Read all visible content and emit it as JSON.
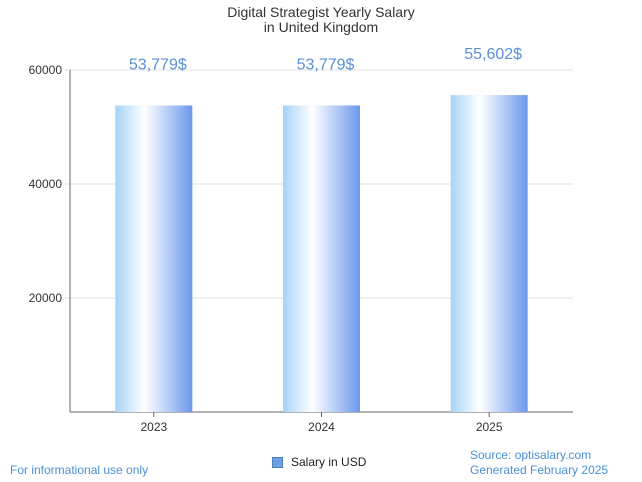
{
  "chart_data": {
    "type": "bar",
    "title_lines": [
      "Digital Strategist Yearly Salary",
      "in United Kingdom"
    ],
    "categories": [
      "2023",
      "2024",
      "2025"
    ],
    "series": [
      {
        "name": "Salary in USD",
        "values": [
          53779,
          53779,
          55602
        ]
      }
    ],
    "data_labels": [
      "53,779$",
      "53,779$",
      "55,602$"
    ],
    "y_ticks": [
      20000,
      40000,
      60000
    ],
    "ylim": [
      0,
      60000
    ],
    "grid": true,
    "legend_position": "bottom-center",
    "colors": {
      "bar_dark": "#6b98ec",
      "bar_light": "#ffffff",
      "bar_edge": "#a6d3f7",
      "label": "#5a8fd8",
      "footer": "#4a90d9"
    }
  },
  "footer": {
    "left": "For informational use only",
    "source": "Source: optisalary.com",
    "generated": "Generated February 2025"
  }
}
